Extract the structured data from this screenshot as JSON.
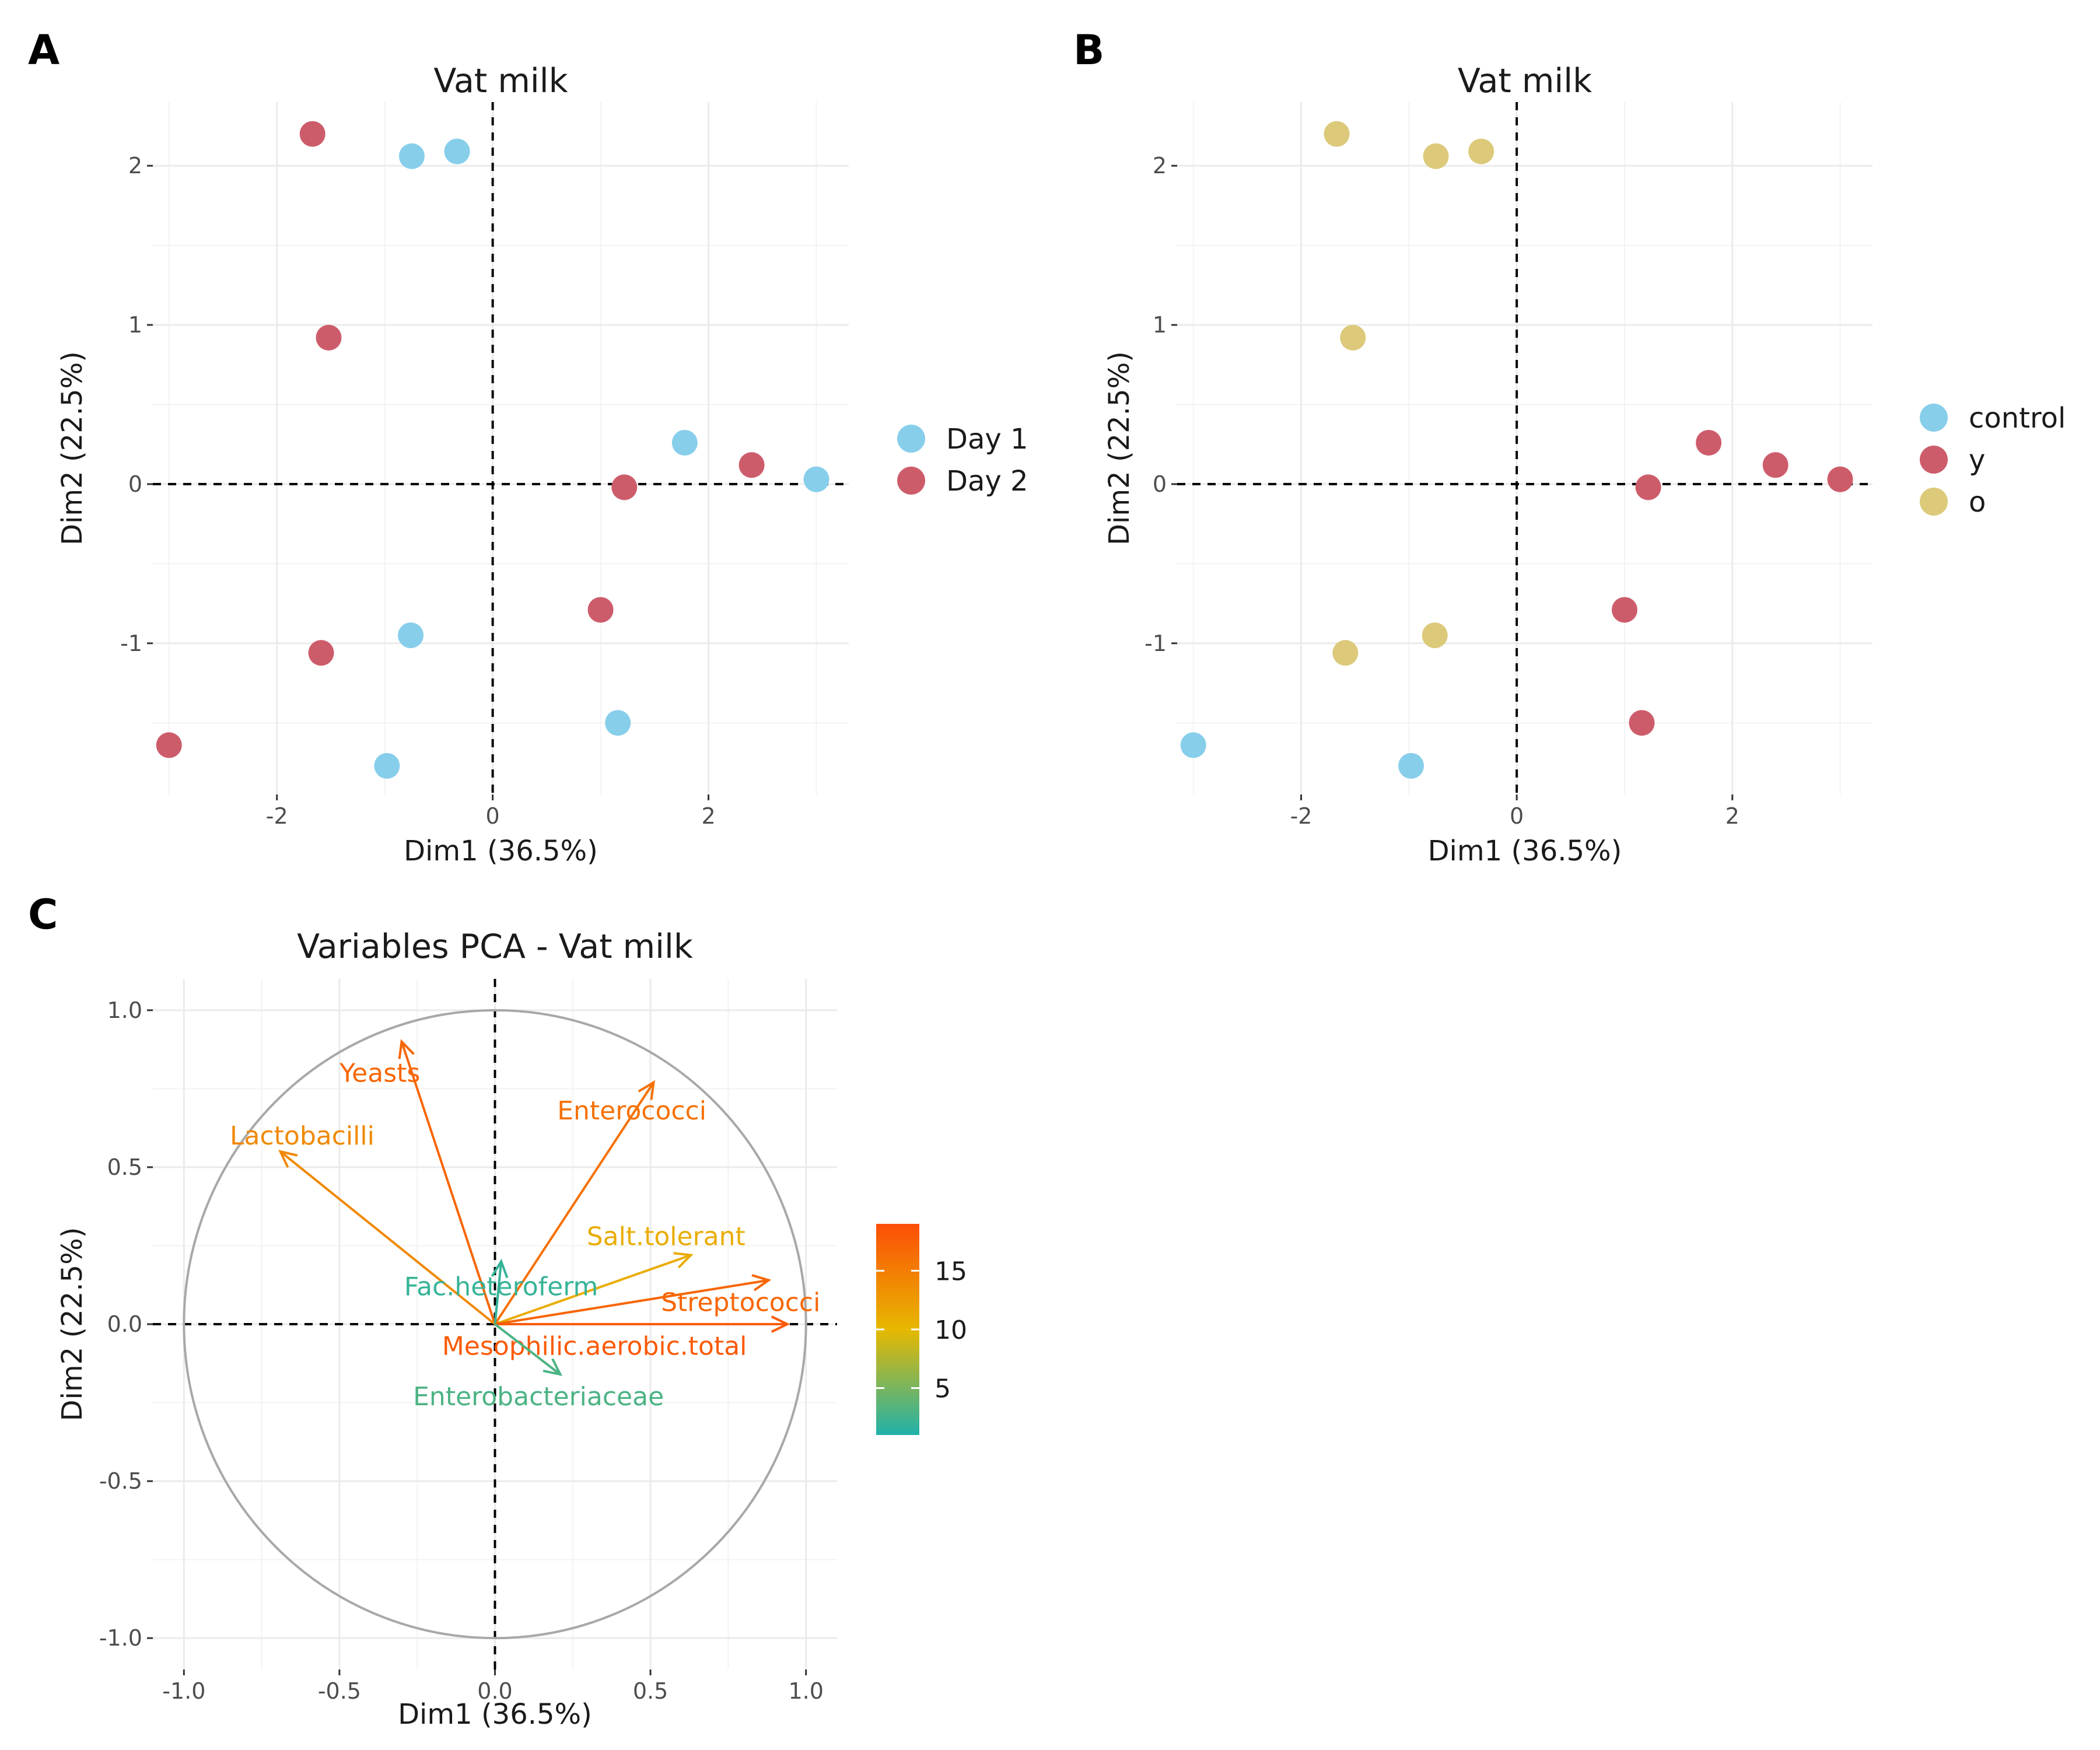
{
  "panels": [
    {
      "id": "A",
      "letter": "A",
      "type": "scatter",
      "title": "Vat milk",
      "xlabel": "Dim1 (36.5%)",
      "ylabel": "Dim2 (22.5%)",
      "xlim": [
        -3.15,
        3.3
      ],
      "ylim": [
        -1.95,
        2.4
      ],
      "xticks": [
        -2,
        0,
        2
      ],
      "yticks": [
        -1,
        0,
        1,
        2
      ],
      "series": [
        {
          "name": "Day 1",
          "color": "#87CEEB",
          "points": [
            [
              -0.75,
              2.06
            ],
            [
              -0.33,
              2.09
            ],
            [
              1.78,
              0.26
            ],
            [
              3.0,
              0.03
            ],
            [
              -0.76,
              -0.95
            ],
            [
              1.16,
              -1.5
            ],
            [
              -0.98,
              -1.77
            ]
          ]
        },
        {
          "name": "Day 2",
          "color": "#CD5C6B",
          "points": [
            [
              -1.67,
              2.2
            ],
            [
              -1.52,
              0.92
            ],
            [
              2.4,
              0.12
            ],
            [
              1.22,
              -0.02
            ],
            [
              1.0,
              -0.79
            ],
            [
              -1.59,
              -1.06
            ],
            [
              -3.0,
              -1.64
            ]
          ]
        }
      ]
    },
    {
      "id": "B",
      "letter": "B",
      "type": "scatter",
      "title": "Vat milk",
      "xlabel": "Dim1 (36.5%)",
      "ylabel": "Dim2 (22.5%)",
      "xlim": [
        -3.15,
        3.3
      ],
      "ylim": [
        -1.95,
        2.4
      ],
      "xticks": [
        -2,
        0,
        2
      ],
      "yticks": [
        -1,
        0,
        1,
        2
      ],
      "series": [
        {
          "name": "control",
          "color": "#87CEEB",
          "points": [
            [
              -3.0,
              -1.64
            ],
            [
              -0.98,
              -1.77
            ]
          ]
        },
        {
          "name": "y",
          "color": "#CD5C6B",
          "points": [
            [
              1.78,
              0.26
            ],
            [
              2.4,
              0.12
            ],
            [
              3.0,
              0.03
            ],
            [
              1.22,
              -0.02
            ],
            [
              1.0,
              -0.79
            ],
            [
              1.16,
              -1.5
            ]
          ]
        },
        {
          "name": "o",
          "color": "#DCC97A",
          "points": [
            [
              -1.67,
              2.2
            ],
            [
              -0.75,
              2.06
            ],
            [
              -0.33,
              2.09
            ],
            [
              -1.52,
              0.92
            ],
            [
              -1.59,
              -1.06
            ],
            [
              -0.76,
              -0.95
            ]
          ]
        }
      ]
    },
    {
      "id": "C",
      "letter": "C",
      "type": "variables-pca",
      "title": "Variables PCA -  Vat milk",
      "xlabel": "Dim1 (36.5%)",
      "ylabel": "Dim2 (22.5%)",
      "xlim": [
        -1.1,
        1.1
      ],
      "ylim": [
        -1.1,
        1.1
      ],
      "xticks": [
        "-1.0",
        "-0.5",
        "0.0",
        "0.5",
        "1.0"
      ],
      "yticks": [
        "-1.0",
        "-0.5",
        "0.0",
        "0.5",
        "1.0"
      ],
      "colorbar": {
        "ticks": [
          5,
          10,
          15
        ],
        "range": [
          1,
          19
        ],
        "colors": [
          "#20B2AA",
          "#E7B800",
          "#FC4E07"
        ]
      },
      "variables": [
        {
          "name": "Yeasts",
          "x": -0.3,
          "y": 0.9,
          "label_x": -0.37,
          "label_y": 0.8,
          "contrib": 17
        },
        {
          "name": "Lactobacilli",
          "x": -0.69,
          "y": 0.55,
          "label_x": -0.62,
          "label_y": 0.6,
          "contrib": 14
        },
        {
          "name": "Enterococci",
          "x": 0.51,
          "y": 0.77,
          "label_x": 0.44,
          "label_y": 0.68,
          "contrib": 16
        },
        {
          "name": "Salt.tolerant",
          "x": 0.63,
          "y": 0.22,
          "label_x": 0.55,
          "label_y": 0.28,
          "contrib": 11
        },
        {
          "name": "Streptococci",
          "x": 0.88,
          "y": 0.14,
          "label_x": 0.79,
          "label_y": 0.07,
          "contrib": 17
        },
        {
          "name": "Fac.heteroferm",
          "x": 0.02,
          "y": 0.2,
          "label_x": 0.02,
          "label_y": 0.12,
          "contrib": 2
        },
        {
          "name": "Mesophilic.aerobic.total",
          "x": 0.94,
          "y": 0.0,
          "label_x": 0.32,
          "label_y": -0.07,
          "contrib": 18
        },
        {
          "name": "Enterobacteriaceae",
          "x": 0.21,
          "y": -0.16,
          "label_x": 0.14,
          "label_y": -0.23,
          "contrib": 3
        }
      ]
    }
  ]
}
